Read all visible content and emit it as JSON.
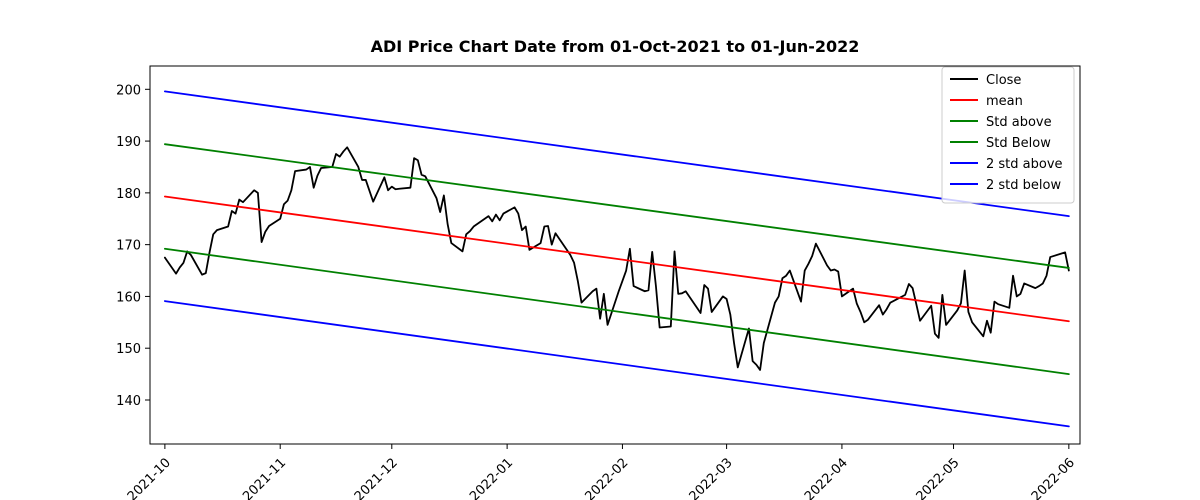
{
  "chart_data": {
    "type": "line",
    "title": "ADI Price Chart Date from 01-Oct-2021 to 01-Jun-2022",
    "xlabel": "",
    "ylabel": "",
    "x_ticks": [
      "2021-10",
      "2021-11",
      "2021-12",
      "2022-01",
      "2022-02",
      "2022-03",
      "2022-04",
      "2022-05",
      "2022-06"
    ],
    "y_ticks": [
      140,
      150,
      160,
      170,
      180,
      190,
      200
    ],
    "xlim": [
      "2021-09-27",
      "2022-06-04"
    ],
    "ylim": [
      131.5,
      204.5
    ],
    "grid": false,
    "legend_position": "top-right",
    "legend": [
      "Close",
      "mean",
      "Std above",
      "Std Below",
      "2 std above",
      "2 std below"
    ],
    "colors": {
      "close": "#000000",
      "mean": "#ff0000",
      "std": "#008000",
      "std2": "#0000ff"
    },
    "series": [
      {
        "name": "Close",
        "color": "#000000",
        "points": [
          [
            "2021-10-01",
            167.5
          ],
          [
            "2021-10-04",
            164.4
          ],
          [
            "2021-10-05",
            165.6
          ],
          [
            "2021-10-06",
            166.5
          ],
          [
            "2021-10-07",
            168.7
          ],
          [
            "2021-10-08",
            168.0
          ],
          [
            "2021-10-11",
            164.2
          ],
          [
            "2021-10-12",
            164.5
          ],
          [
            "2021-10-13",
            168.5
          ],
          [
            "2021-10-14",
            172.0
          ],
          [
            "2021-10-15",
            172.8
          ],
          [
            "2021-10-18",
            173.5
          ],
          [
            "2021-10-19",
            176.5
          ],
          [
            "2021-10-20",
            176.0
          ],
          [
            "2021-10-21",
            178.7
          ],
          [
            "2021-10-22",
            178.2
          ],
          [
            "2021-10-25",
            180.5
          ],
          [
            "2021-10-26",
            180.0
          ],
          [
            "2021-10-27",
            170.5
          ],
          [
            "2021-10-28",
            172.5
          ],
          [
            "2021-10-29",
            173.6
          ],
          [
            "2021-11-01",
            175.0
          ],
          [
            "2021-11-02",
            177.8
          ],
          [
            "2021-11-03",
            178.5
          ],
          [
            "2021-11-04",
            180.5
          ],
          [
            "2021-11-05",
            184.2
          ],
          [
            "2021-11-08",
            184.5
          ],
          [
            "2021-11-09",
            185.0
          ],
          [
            "2021-11-10",
            181.0
          ],
          [
            "2021-11-11",
            183.3
          ],
          [
            "2021-11-12",
            184.8
          ],
          [
            "2021-11-15",
            185.0
          ],
          [
            "2021-11-16",
            187.5
          ],
          [
            "2021-11-17",
            187.0
          ],
          [
            "2021-11-18",
            188.0
          ],
          [
            "2021-11-19",
            188.8
          ],
          [
            "2021-11-22",
            185.0
          ],
          [
            "2021-11-23",
            182.5
          ],
          [
            "2021-11-24",
            182.5
          ],
          [
            "2021-11-26",
            178.3
          ],
          [
            "2021-11-29",
            183.0
          ],
          [
            "2021-11-30",
            180.5
          ],
          [
            "2021-12-01",
            181.2
          ],
          [
            "2021-12-02",
            180.7
          ],
          [
            "2021-12-03",
            180.8
          ],
          [
            "2021-12-06",
            181.0
          ],
          [
            "2021-12-07",
            186.7
          ],
          [
            "2021-12-08",
            186.3
          ],
          [
            "2021-12-09",
            183.5
          ],
          [
            "2021-12-10",
            183.2
          ],
          [
            "2021-12-13",
            179.0
          ],
          [
            "2021-12-14",
            176.3
          ],
          [
            "2021-12-15",
            179.5
          ],
          [
            "2021-12-16",
            174.0
          ],
          [
            "2021-12-17",
            170.3
          ],
          [
            "2021-12-20",
            168.7
          ],
          [
            "2021-12-21",
            172.0
          ],
          [
            "2021-12-22",
            172.6
          ],
          [
            "2021-12-23",
            173.5
          ],
          [
            "2021-12-27",
            175.5
          ],
          [
            "2021-12-28",
            174.5
          ],
          [
            "2021-12-29",
            175.8
          ],
          [
            "2021-12-30",
            174.7
          ],
          [
            "2021-12-31",
            176.0
          ],
          [
            "2022-01-03",
            177.2
          ],
          [
            "2022-01-04",
            176.0
          ],
          [
            "2022-01-05",
            172.8
          ],
          [
            "2022-01-06",
            173.5
          ],
          [
            "2022-01-07",
            169.0
          ],
          [
            "2022-01-10",
            170.3
          ],
          [
            "2022-01-11",
            173.5
          ],
          [
            "2022-01-12",
            173.6
          ],
          [
            "2022-01-13",
            170.0
          ],
          [
            "2022-01-14",
            172.2
          ],
          [
            "2022-01-18",
            168.0
          ],
          [
            "2022-01-19",
            166.5
          ],
          [
            "2022-01-20",
            163.0
          ],
          [
            "2022-01-21",
            158.8
          ],
          [
            "2022-01-24",
            161.0
          ],
          [
            "2022-01-25",
            161.5
          ],
          [
            "2022-01-26",
            155.7
          ],
          [
            "2022-01-27",
            160.5
          ],
          [
            "2022-01-28",
            154.5
          ],
          [
            "2022-01-31",
            161.0
          ],
          [
            "2022-02-01",
            163.0
          ],
          [
            "2022-02-02",
            165.0
          ],
          [
            "2022-02-03",
            169.2
          ],
          [
            "2022-02-04",
            162.0
          ],
          [
            "2022-02-07",
            161.0
          ],
          [
            "2022-02-08",
            161.2
          ],
          [
            "2022-02-09",
            168.6
          ],
          [
            "2022-02-10",
            162.0
          ],
          [
            "2022-02-11",
            154.0
          ],
          [
            "2022-02-14",
            154.2
          ],
          [
            "2022-02-15",
            168.7
          ],
          [
            "2022-02-16",
            160.5
          ],
          [
            "2022-02-17",
            160.6
          ],
          [
            "2022-02-18",
            161.0
          ],
          [
            "2022-02-22",
            156.8
          ],
          [
            "2022-02-23",
            162.2
          ],
          [
            "2022-02-24",
            161.5
          ],
          [
            "2022-02-25",
            157.0
          ],
          [
            "2022-02-28",
            160.0
          ],
          [
            "2022-03-01",
            159.5
          ],
          [
            "2022-03-02",
            156.5
          ],
          [
            "2022-03-03",
            151.0
          ],
          [
            "2022-03-04",
            146.3
          ],
          [
            "2022-03-07",
            153.8
          ],
          [
            "2022-03-08",
            147.5
          ],
          [
            "2022-03-09",
            146.8
          ],
          [
            "2022-03-10",
            145.8
          ],
          [
            "2022-03-11",
            151.0
          ],
          [
            "2022-03-14",
            158.8
          ],
          [
            "2022-03-15",
            160.0
          ],
          [
            "2022-03-16",
            163.5
          ],
          [
            "2022-03-17",
            164.0
          ],
          [
            "2022-03-18",
            165.0
          ],
          [
            "2022-03-21",
            159.0
          ],
          [
            "2022-03-22",
            165.0
          ],
          [
            "2022-03-23",
            166.3
          ],
          [
            "2022-03-24",
            167.8
          ],
          [
            "2022-03-25",
            170.2
          ],
          [
            "2022-03-28",
            166.0
          ],
          [
            "2022-03-29",
            165.0
          ],
          [
            "2022-03-30",
            165.2
          ],
          [
            "2022-03-31",
            164.8
          ],
          [
            "2022-04-01",
            160.0
          ],
          [
            "2022-04-04",
            161.5
          ],
          [
            "2022-04-05",
            158.6
          ],
          [
            "2022-04-06",
            157.0
          ],
          [
            "2022-04-07",
            155.0
          ],
          [
            "2022-04-08",
            155.5
          ],
          [
            "2022-04-11",
            158.3
          ],
          [
            "2022-04-12",
            156.5
          ],
          [
            "2022-04-13",
            157.5
          ],
          [
            "2022-04-14",
            158.8
          ],
          [
            "2022-04-18",
            160.3
          ],
          [
            "2022-04-19",
            162.4
          ],
          [
            "2022-04-20",
            161.6
          ],
          [
            "2022-04-21",
            158.5
          ],
          [
            "2022-04-22",
            155.3
          ],
          [
            "2022-04-25",
            158.2
          ],
          [
            "2022-04-26",
            152.8
          ],
          [
            "2022-04-27",
            152.0
          ],
          [
            "2022-04-28",
            160.3
          ],
          [
            "2022-04-29",
            154.5
          ],
          [
            "2022-05-02",
            157.3
          ],
          [
            "2022-05-03",
            158.7
          ],
          [
            "2022-05-04",
            165.0
          ],
          [
            "2022-05-05",
            157.0
          ],
          [
            "2022-05-06",
            155.0
          ],
          [
            "2022-05-09",
            152.3
          ],
          [
            "2022-05-10",
            155.3
          ],
          [
            "2022-05-11",
            153.0
          ],
          [
            "2022-05-12",
            159.0
          ],
          [
            "2022-05-13",
            158.5
          ],
          [
            "2022-05-16",
            157.8
          ],
          [
            "2022-05-17",
            164.0
          ],
          [
            "2022-05-18",
            160.0
          ],
          [
            "2022-05-19",
            160.5
          ],
          [
            "2022-05-20",
            162.5
          ],
          [
            "2022-05-23",
            161.6
          ],
          [
            "2022-05-24",
            162.0
          ],
          [
            "2022-05-25",
            162.5
          ],
          [
            "2022-05-26",
            164.0
          ],
          [
            "2022-05-27",
            167.6
          ],
          [
            "2022-05-31",
            168.5
          ],
          [
            "2022-06-01",
            165.0
          ]
        ]
      },
      {
        "name": "mean",
        "color": "#ff0000",
        "points": [
          [
            "2021-10-01",
            179.3
          ],
          [
            "2022-06-01",
            155.2
          ]
        ]
      },
      {
        "name": "Std above",
        "color": "#008000",
        "points": [
          [
            "2021-10-01",
            189.4
          ],
          [
            "2022-06-01",
            165.5
          ]
        ]
      },
      {
        "name": "Std Below",
        "color": "#008000",
        "points": [
          [
            "2021-10-01",
            169.2
          ],
          [
            "2022-06-01",
            145.0
          ]
        ]
      },
      {
        "name": "2 std above",
        "color": "#0000ff",
        "points": [
          [
            "2021-10-01",
            199.6
          ],
          [
            "2022-06-01",
            175.5
          ]
        ]
      },
      {
        "name": "2 std below",
        "color": "#0000ff",
        "points": [
          [
            "2021-10-01",
            159.1
          ],
          [
            "2022-06-01",
            134.9
          ]
        ]
      }
    ]
  }
}
